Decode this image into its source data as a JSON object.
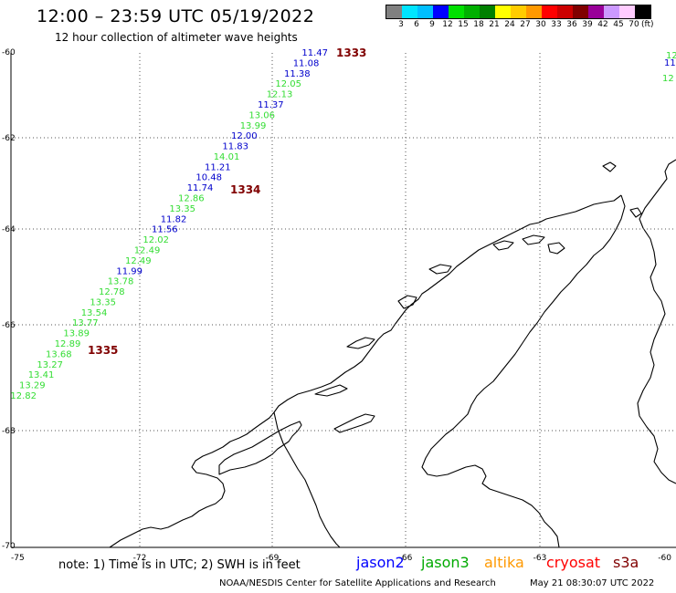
{
  "header": {
    "title": "12:00 – 23:59 UTC 05/19/2022",
    "subtitle": "12 hour collection of altimeter wave heights"
  },
  "colorbar": {
    "colors": [
      "#808080",
      "#00e5ff",
      "#00bfff",
      "#0000ff",
      "#00e000",
      "#00b000",
      "#008000",
      "#ffff00",
      "#ffcc00",
      "#ff9900",
      "#ff0000",
      "#cc0000",
      "#800000",
      "#990099",
      "#cc99ff",
      "#ffccff",
      "#000000"
    ],
    "ticks": [
      "3",
      "6",
      "9",
      "12",
      "15",
      "18",
      "21",
      "24",
      "27",
      "30",
      "33",
      "36",
      "39",
      "42",
      "45",
      "70"
    ],
    "unit": "(ft)"
  },
  "axes": {
    "lon_labels": [
      "-75",
      "-72",
      "-69",
      "-66",
      "-63",
      "-60"
    ],
    "lat_labels": [
      "-60",
      "-62",
      "-64",
      "-66",
      "-68",
      "-70"
    ],
    "lon_range": [
      -75,
      -60
    ],
    "lat_range": [
      -70,
      -60
    ],
    "grid": true
  },
  "track": {
    "jason2_color": "#0000cc",
    "jason3_color": "#33dd33",
    "times_color": "#800000",
    "points": [
      {
        "v": "11.47",
        "c": "b"
      },
      {
        "v": "11.08",
        "c": "b"
      },
      {
        "v": "11.38",
        "c": "b"
      },
      {
        "v": "12.05",
        "c": "g"
      },
      {
        "v": "12.13",
        "c": "g"
      },
      {
        "v": "11.37",
        "c": "b"
      },
      {
        "v": "13.06",
        "c": "g"
      },
      {
        "v": "13.99",
        "c": "g"
      },
      {
        "v": "12.00",
        "c": "b"
      },
      {
        "v": "11.83",
        "c": "b"
      },
      {
        "v": "14.01",
        "c": "g"
      },
      {
        "v": "11.21",
        "c": "b"
      },
      {
        "v": "10.48",
        "c": "b"
      },
      {
        "v": "11.74",
        "c": "b"
      },
      {
        "v": "12.86",
        "c": "g"
      },
      {
        "v": "13.35",
        "c": "g"
      },
      {
        "v": "11.82",
        "c": "b"
      },
      {
        "v": "11.56",
        "c": "b"
      },
      {
        "v": "12.02",
        "c": "g"
      },
      {
        "v": "12.49",
        "c": "g"
      },
      {
        "v": "12.49",
        "c": "g"
      },
      {
        "v": "11.99",
        "c": "b"
      },
      {
        "v": "13.78",
        "c": "g"
      },
      {
        "v": "12.78",
        "c": "g"
      },
      {
        "v": "13.35",
        "c": "g"
      },
      {
        "v": "13.54",
        "c": "g"
      },
      {
        "v": "13.77",
        "c": "g"
      },
      {
        "v": "13.89",
        "c": "g"
      },
      {
        "v": "12.89",
        "c": "g"
      },
      {
        "v": "13.68",
        "c": "g"
      },
      {
        "v": "13.27",
        "c": "g"
      },
      {
        "v": "13.41",
        "c": "g"
      },
      {
        "v": "13.29",
        "c": "g"
      },
      {
        "v": "12.82",
        "c": "g"
      }
    ],
    "times": [
      "1333",
      "1334",
      "1335"
    ],
    "edge_values": [
      "12",
      "11",
      "12"
    ]
  },
  "footer": {
    "note": "note:  1) Time is in UTC;  2) SWH is in feet",
    "legend": [
      {
        "label": "jason2",
        "color": "#0000ff"
      },
      {
        "label": "jason3",
        "color": "#00aa00"
      },
      {
        "label": "altika",
        "color": "#ff9900"
      },
      {
        "label": "cryosat",
        "color": "#ff0000"
      },
      {
        "label": "s3a",
        "color": "#800000"
      }
    ],
    "credit": "NOAA/NESDIS Center for Satellite Applications and Research",
    "timestamp": "May 21 08:30:07 UTC 2022"
  }
}
